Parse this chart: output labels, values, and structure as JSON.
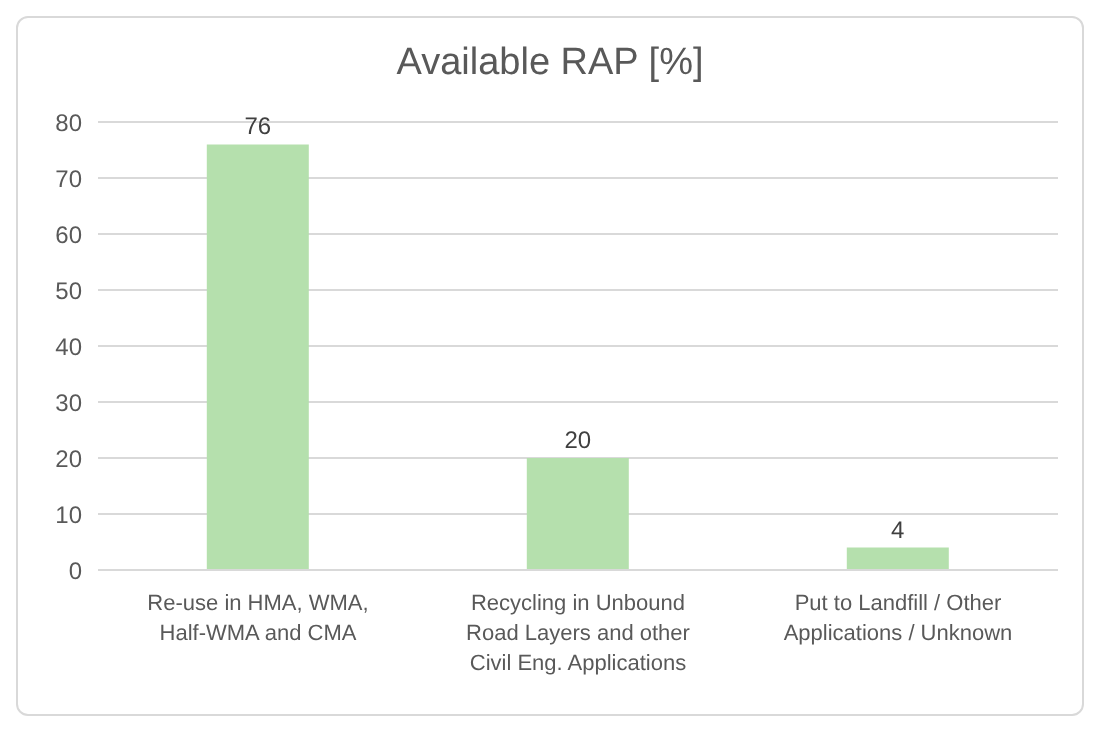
{
  "chart_data": {
    "type": "bar",
    "title": "Available RAP [%]",
    "categories": [
      "Re-use in HMA, WMA, Half-WMA and CMA",
      "Recycling in Unbound Road Layers and other Civil Eng. Applications",
      "Put to Landfill / Other Applications / Unknown"
    ],
    "values": [
      76,
      20,
      4
    ],
    "color": "#b5e0ad",
    "ylim": [
      0,
      80
    ],
    "yticks": [
      0,
      10,
      20,
      30,
      40,
      50,
      60,
      70,
      80
    ],
    "grid": "y",
    "data_labels": true
  }
}
